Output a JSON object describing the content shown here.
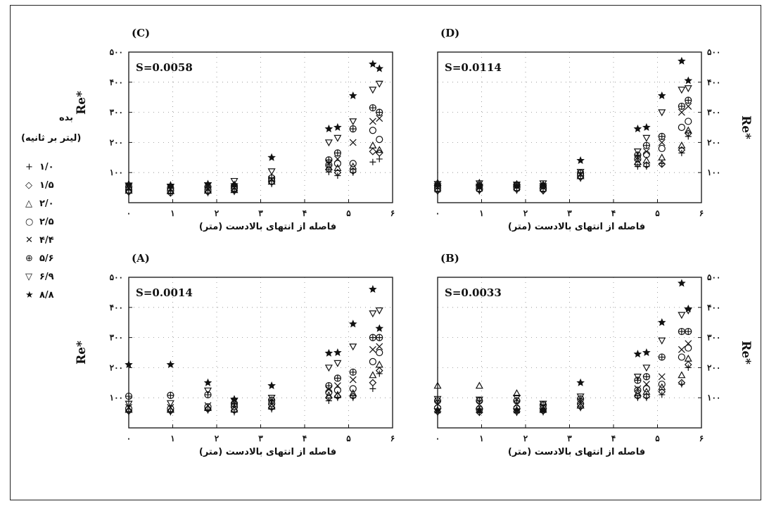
{
  "legend": {
    "title_line1": "بده",
    "title_line2": "(لیتر بر ثانیه)",
    "items": [
      {
        "symbol": "+",
        "label": "۱/۰"
      },
      {
        "symbol": "◇",
        "label": "۱/۵"
      },
      {
        "symbol": "△",
        "label": "۲/۰"
      },
      {
        "symbol": "○",
        "label": "۲/۵"
      },
      {
        "symbol": "✕",
        "label": "۴/۴"
      },
      {
        "symbol": "⊕",
        "label": "۵/۶"
      },
      {
        "symbol": "▽",
        "label": "۶/۹"
      },
      {
        "symbol": "★",
        "label": "۸/۸"
      }
    ]
  },
  "chart_data": [
    {
      "id": "C",
      "type": "scatter",
      "panel_label": "(C)",
      "annotation": "S=0.0058",
      "xlabel": "فاصله از انتهای بالادست (متر)",
      "ylabel": "Re*",
      "ylabel_side": "left",
      "xlim": [
        0,
        6
      ],
      "ylim": [
        0,
        500
      ],
      "x_ticks": [
        "۰",
        "۱",
        "۲",
        "۳",
        "۴",
        "۵",
        "۶"
      ],
      "y_ticks": [
        "",
        "۱۰۰",
        "۲۰۰",
        "۳۰۰",
        "۴۰۰",
        "۵۰۰"
      ],
      "x": [
        0,
        0.95,
        1.8,
        2.4,
        3.25,
        4.55,
        4.75,
        5.1,
        5.55,
        5.7
      ],
      "series": [
        {
          "name": "۱/۰",
          "marker": "plus",
          "values": [
            32,
            32,
            32,
            36,
            62,
            102,
            90,
            100,
            135,
            145
          ]
        },
        {
          "name": "۱/۵",
          "marker": "diamond",
          "values": [
            36,
            32,
            36,
            40,
            68,
            110,
            100,
            105,
            170,
            165
          ]
        },
        {
          "name": "۲/۰",
          "marker": "triangle",
          "values": [
            40,
            38,
            40,
            42,
            70,
            118,
            115,
            120,
            190,
            175
          ]
        },
        {
          "name": "۲/۵",
          "marker": "circle",
          "values": [
            42,
            40,
            42,
            48,
            72,
            125,
            130,
            130,
            240,
            210
          ]
        },
        {
          "name": "۴/۴",
          "marker": "cross",
          "values": [
            50,
            44,
            44,
            50,
            78,
            132,
            145,
            200,
            270,
            280
          ]
        },
        {
          "name": "۵/۶",
          "marker": "circleplus",
          "values": [
            52,
            48,
            52,
            55,
            82,
            142,
            165,
            245,
            315,
            300
          ]
        },
        {
          "name": "۶/۹",
          "marker": "triangledown",
          "values": [
            56,
            52,
            58,
            72,
            104,
            200,
            215,
            270,
            375,
            395
          ]
        },
        {
          "name": "۸/۸",
          "marker": "star",
          "values": [
            62,
            58,
            62,
            60,
            150,
            245,
            250,
            355,
            460,
            445
          ]
        }
      ]
    },
    {
      "id": "D",
      "type": "scatter",
      "panel_label": "(D)",
      "annotation": "S=0.0114",
      "xlabel": "فاصله از انتهای بالادست (متر)",
      "ylabel": "Re*",
      "ylabel_side": "right",
      "xlim": [
        0,
        6
      ],
      "ylim": [
        0,
        500
      ],
      "x_ticks": [
        "۰",
        "۱",
        "۲",
        "۳",
        "۴",
        "۵",
        "۶"
      ],
      "y_ticks": [
        "",
        "۱۰۰",
        "۲۰۰",
        "۳۰۰",
        "۴۰۰",
        "۵۰۰"
      ],
      "x": [
        0,
        0.95,
        1.8,
        2.4,
        3.25,
        4.55,
        4.75,
        5.1,
        5.55,
        5.7
      ],
      "series": [
        {
          "name": "۱/۰",
          "marker": "plus",
          "values": [
            36,
            38,
            40,
            38,
            80,
            120,
            120,
            130,
            165,
            220
          ]
        },
        {
          "name": "۱/۵",
          "marker": "diamond",
          "values": [
            40,
            42,
            44,
            40,
            84,
            128,
            125,
            128,
            175,
            230
          ]
        },
        {
          "name": "۲/۰",
          "marker": "triangle",
          "values": [
            66,
            66,
            62,
            58,
            88,
            135,
            140,
            150,
            190,
            240
          ]
        },
        {
          "name": "۲/۵",
          "marker": "circle",
          "values": [
            48,
            46,
            50,
            46,
            90,
            145,
            160,
            180,
            250,
            270
          ]
        },
        {
          "name": "۴/۴",
          "marker": "cross",
          "values": [
            52,
            50,
            54,
            52,
            94,
            150,
            170,
            200,
            300,
            320
          ]
        },
        {
          "name": "۵/۶",
          "marker": "circleplus",
          "values": [
            56,
            56,
            58,
            56,
            98,
            158,
            190,
            220,
            320,
            340
          ]
        },
        {
          "name": "۶/۹",
          "marker": "triangledown",
          "values": [
            62,
            64,
            60,
            64,
            102,
            170,
            215,
            300,
            375,
            380
          ]
        },
        {
          "name": "۸/۸",
          "marker": "star",
          "values": [
            60,
            58,
            56,
            60,
            140,
            245,
            250,
            355,
            470,
            405
          ]
        }
      ]
    },
    {
      "id": "A",
      "type": "scatter",
      "panel_label": "(A)",
      "annotation": "S=0.0014",
      "xlabel": "فاصله از انتهای بالادست (متر)",
      "ylabel": "Re*",
      "ylabel_side": "left",
      "xlim": [
        0,
        6
      ],
      "ylim": [
        0,
        500
      ],
      "x_ticks": [
        "۰",
        "۱",
        "۲",
        "۳",
        "۴",
        "۵",
        "۶"
      ],
      "y_ticks": [
        "",
        "۱۰۰",
        "۲۰۰",
        "۳۰۰",
        "۴۰۰",
        "۵۰۰"
      ],
      "x": [
        0,
        0.95,
        1.8,
        2.4,
        3.25,
        4.55,
        4.75,
        5.1,
        5.55,
        5.7
      ],
      "series": [
        {
          "name": "۱/۰",
          "marker": "plus",
          "values": [
            52,
            52,
            58,
            52,
            62,
            90,
            100,
            100,
            130,
            180
          ]
        },
        {
          "name": "۱/۵",
          "marker": "diamond",
          "values": [
            56,
            56,
            62,
            58,
            68,
            100,
            105,
            105,
            150,
            190
          ]
        },
        {
          "name": "۲/۰",
          "marker": "triangle",
          "values": [
            60,
            60,
            66,
            62,
            72,
            108,
            110,
            115,
            175,
            210
          ]
        },
        {
          "name": "۲/۵",
          "marker": "circle",
          "values": [
            64,
            64,
            70,
            70,
            80,
            118,
            125,
            130,
            220,
            250
          ]
        },
        {
          "name": "۴/۴",
          "marker": "cross",
          "values": [
            68,
            68,
            74,
            76,
            86,
            128,
            140,
            160,
            260,
            270
          ]
        },
        {
          "name": "۵/۶",
          "marker": "circleplus",
          "values": [
            105,
            108,
            110,
            80,
            92,
            140,
            165,
            185,
            300,
            300
          ]
        },
        {
          "name": "۶/۹",
          "marker": "triangledown",
          "values": [
            80,
            82,
            124,
            90,
            100,
            200,
            215,
            270,
            380,
            390
          ]
        },
        {
          "name": "۸/۸",
          "marker": "star",
          "values": [
            210,
            210,
            150,
            95,
            140,
            248,
            250,
            345,
            460,
            330
          ]
        }
      ]
    },
    {
      "id": "B",
      "type": "scatter",
      "panel_label": "(B)",
      "annotation": "S=0.0033",
      "xlabel": "فاصله از انتهای بالادست (متر)",
      "ylabel": "Re*",
      "ylabel_side": "right",
      "xlim": [
        0,
        6
      ],
      "ylim": [
        0,
        500
      ],
      "x_ticks": [
        "۰",
        "۱",
        "۲",
        "۳",
        "۴",
        "۵",
        "۶"
      ],
      "y_ticks": [
        "",
        "۱۰۰",
        "۲۰۰",
        "۳۰۰",
        "۴۰۰",
        "۵۰۰"
      ],
      "x": [
        0,
        0.95,
        1.8,
        2.4,
        3.25,
        4.55,
        4.75,
        5.1,
        5.55,
        5.7
      ],
      "series": [
        {
          "name": "۱/۰",
          "marker": "plus",
          "values": [
            50,
            50,
            50,
            52,
            66,
            100,
            100,
            110,
            145,
            200
          ]
        },
        {
          "name": "۱/۵",
          "marker": "diamond",
          "values": [
            54,
            52,
            54,
            56,
            70,
            105,
            105,
            120,
            150,
            210
          ]
        },
        {
          "name": "۲/۰",
          "marker": "triangle",
          "values": [
            140,
            140,
            115,
            60,
            74,
            115,
            120,
            135,
            175,
            230
          ]
        },
        {
          "name": "۲/۵",
          "marker": "circle",
          "values": [
            66,
            62,
            64,
            64,
            80,
            125,
            130,
            145,
            235,
            265
          ]
        },
        {
          "name": "۴/۴",
          "marker": "cross",
          "values": [
            80,
            78,
            80,
            70,
            88,
            130,
            145,
            170,
            260,
            280
          ]
        },
        {
          "name": "۵/۶",
          "marker": "circleplus",
          "values": [
            90,
            90,
            90,
            76,
            96,
            158,
            170,
            235,
            320,
            320
          ]
        },
        {
          "name": "۶/۹",
          "marker": "triangledown",
          "values": [
            96,
            94,
            100,
            80,
            104,
            170,
            200,
            290,
            375,
            390
          ]
        },
        {
          "name": "۸/۸",
          "marker": "star",
          "values": [
            60,
            60,
            60,
            60,
            150,
            245,
            250,
            350,
            480,
            395
          ]
        }
      ]
    }
  ]
}
